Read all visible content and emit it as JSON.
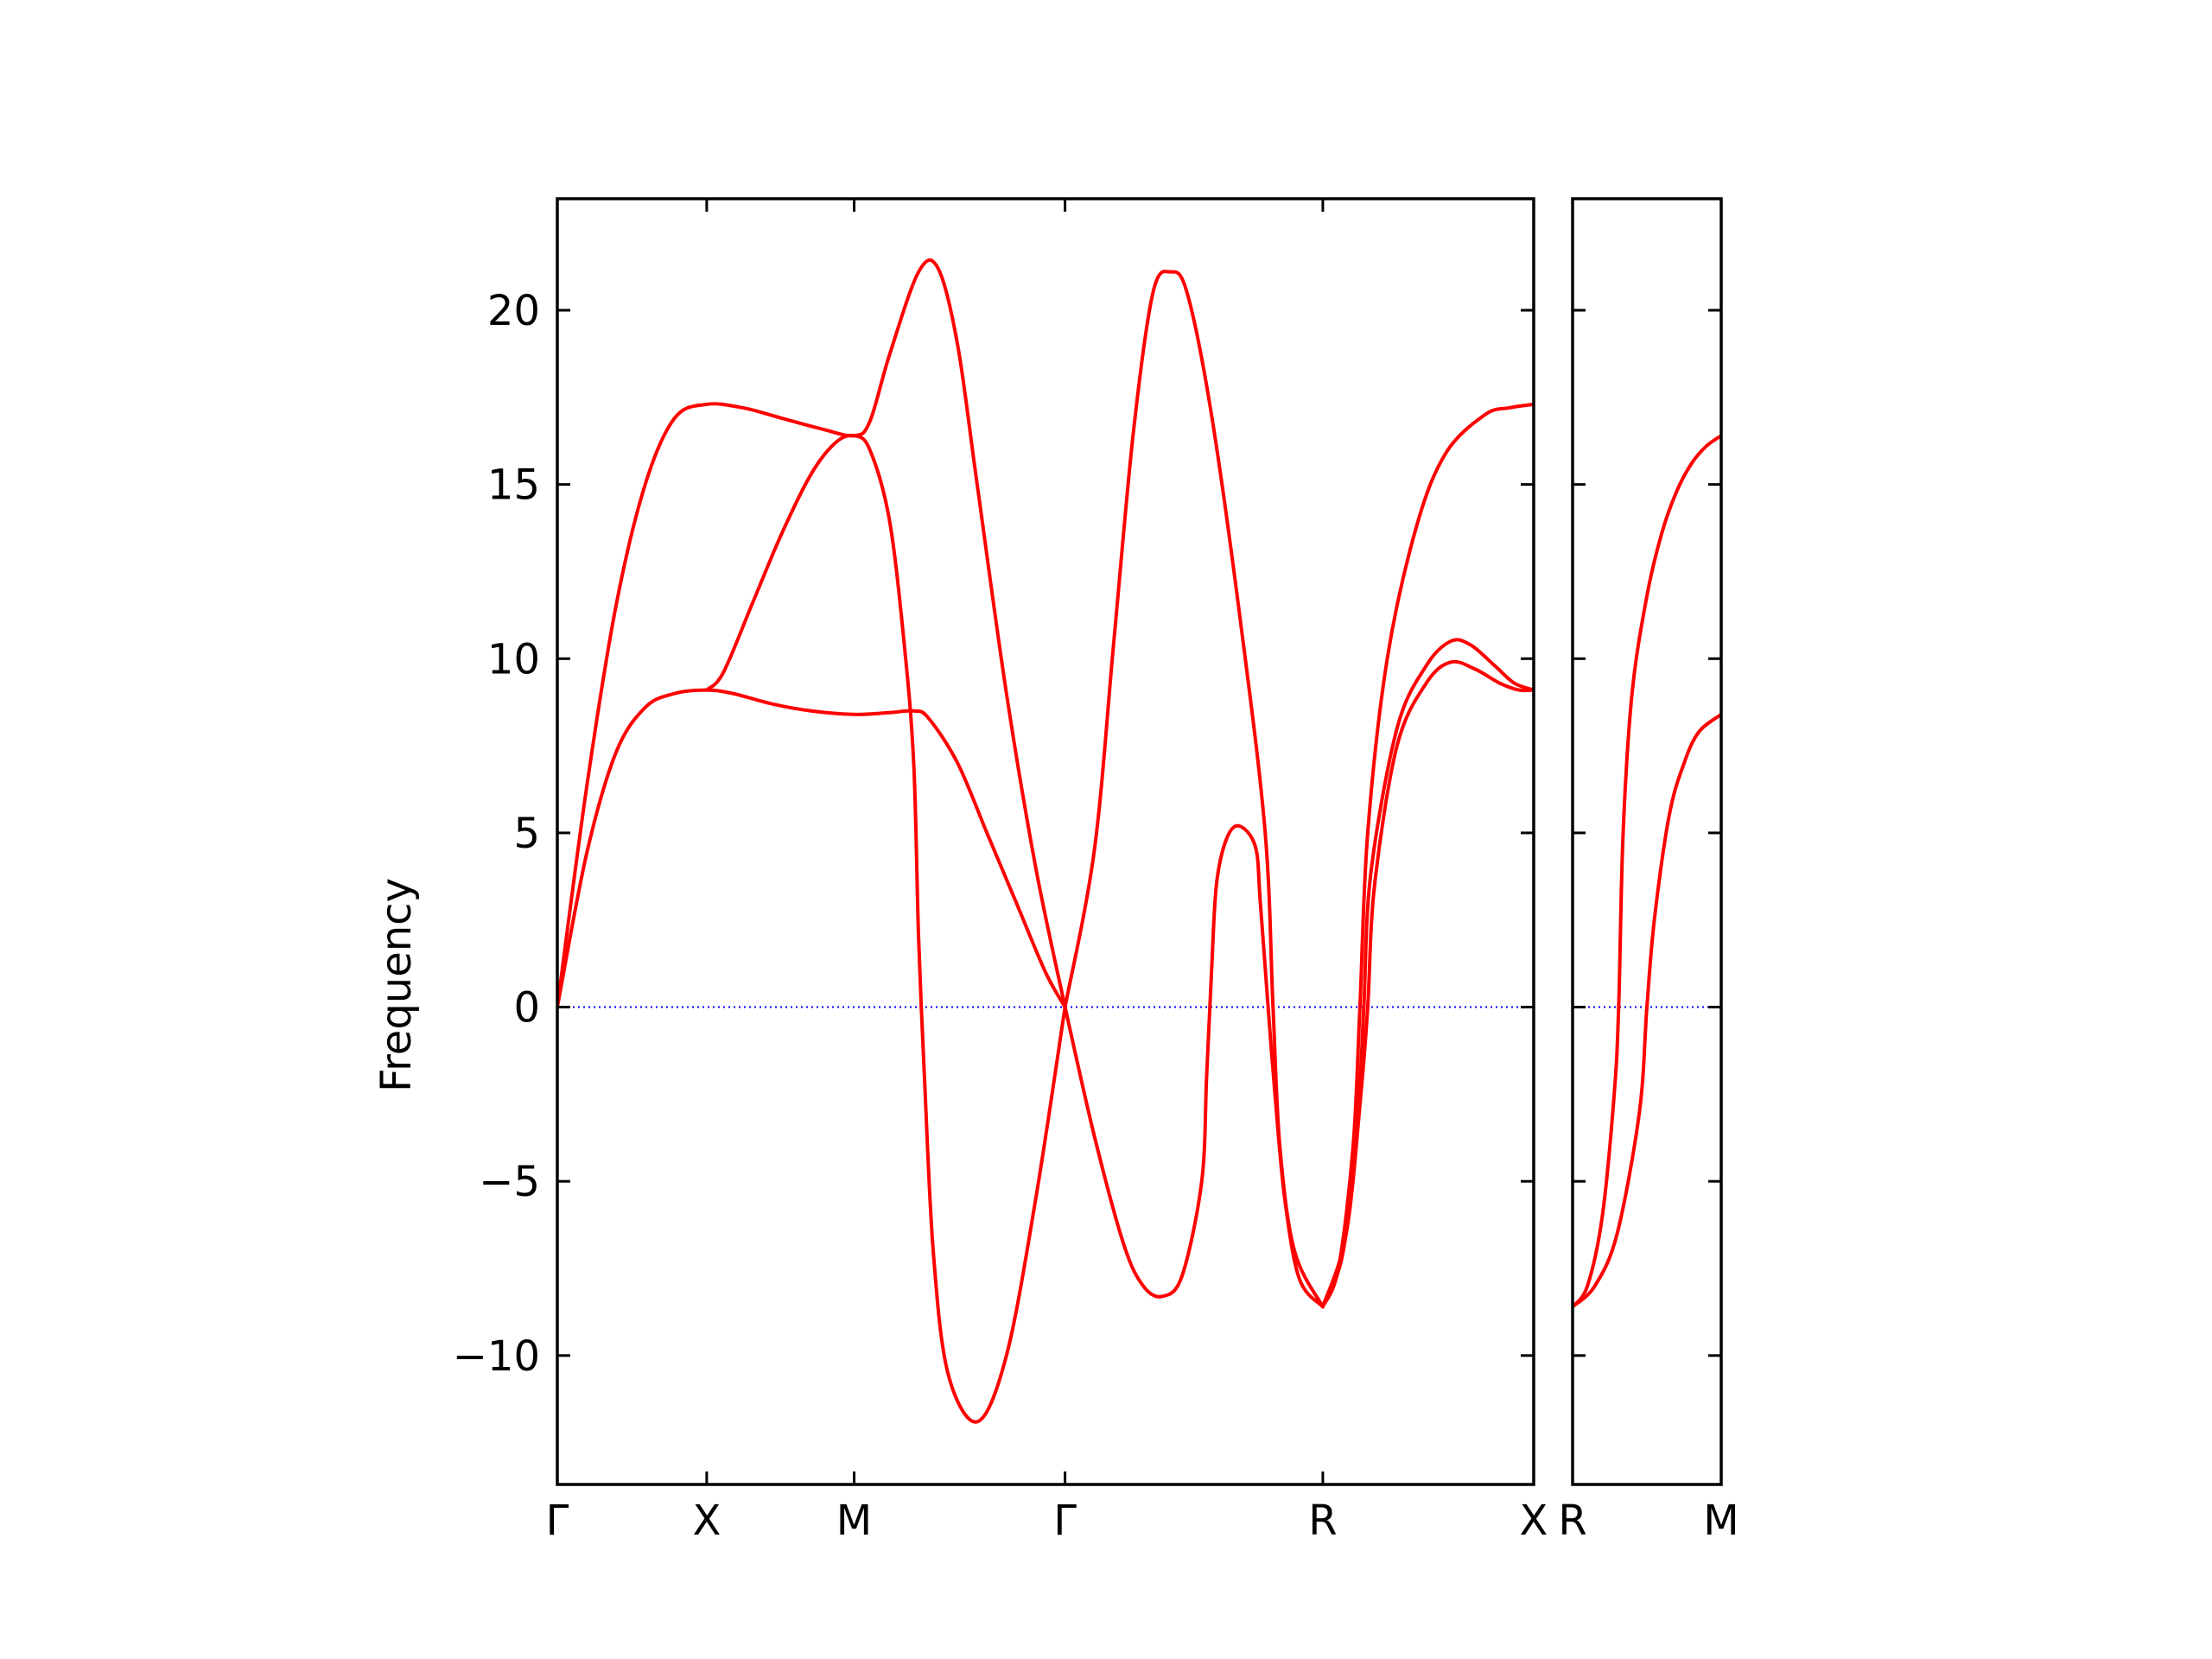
{
  "chart_data": {
    "type": "line",
    "ylabel": "Frequency",
    "xlabel": "",
    "ylim": [
      -13.7,
      23.2
    ],
    "yticks": [
      {
        "value": -10,
        "label": "−10"
      },
      {
        "value": -5,
        "label": "−5"
      },
      {
        "value": 0,
        "label": "0"
      },
      {
        "value": 5,
        "label": "5"
      },
      {
        "value": 10,
        "label": "10"
      },
      {
        "value": 15,
        "label": "15"
      },
      {
        "value": 20,
        "label": "20"
      }
    ],
    "line_color": "#ff0000",
    "zero_line_color": "#0000ff",
    "zero_line_style": "dotted",
    "grid": false,
    "legend": "none",
    "panels": [
      {
        "xlim": [
          0,
          1
        ],
        "high_symmetry_points": [
          {
            "label": "Γ",
            "x": 0.0
          },
          {
            "label": "X",
            "x": 0.153
          },
          {
            "label": "M",
            "x": 0.304
          },
          {
            "label": "Γ",
            "x": 0.52
          },
          {
            "label": "R",
            "x": 0.784
          },
          {
            "label": "X",
            "x": 1.0
          }
        ],
        "series": [
          {
            "values": [
              [
                0.0,
                0.0
              ],
              [
                0.03,
                4.4
              ],
              [
                0.06,
                7.3
              ],
              [
                0.09,
                8.6
              ],
              [
                0.12,
                9.0
              ],
              [
                0.153,
                9.1
              ],
              [
                0.18,
                9.0
              ],
              [
                0.22,
                8.7
              ],
              [
                0.26,
                8.5
              ],
              [
                0.304,
                8.4
              ],
              [
                0.34,
                8.45
              ],
              [
                0.365,
                8.5
              ],
              [
                0.38,
                8.3
              ],
              [
                0.41,
                7.0
              ],
              [
                0.44,
                5.0
              ],
              [
                0.47,
                3.0
              ],
              [
                0.5,
                1.0
              ],
              [
                0.52,
                0.0
              ]
            ]
          },
          {
            "values": [
              [
                0.0,
                0.0
              ],
              [
                0.03,
                6.3
              ],
              [
                0.06,
                11.5
              ],
              [
                0.09,
                15.0
              ],
              [
                0.12,
                16.9
              ],
              [
                0.153,
                17.3
              ],
              [
                0.19,
                17.2
              ],
              [
                0.23,
                16.9
              ],
              [
                0.27,
                16.6
              ],
              [
                0.304,
                16.4
              ],
              [
                0.32,
                16.8
              ],
              [
                0.34,
                18.7
              ],
              [
                0.37,
                21.1
              ],
              [
                0.39,
                21.2
              ],
              [
                0.41,
                19.0
              ],
              [
                0.43,
                15.0
              ],
              [
                0.46,
                9.0
              ],
              [
                0.49,
                4.0
              ],
              [
                0.52,
                0.0
              ]
            ]
          },
          {
            "values": [
              [
                0.153,
                9.1
              ],
              [
                0.17,
                9.6
              ],
              [
                0.2,
                11.6
              ],
              [
                0.23,
                13.6
              ],
              [
                0.26,
                15.3
              ],
              [
                0.285,
                16.2
              ],
              [
                0.304,
                16.4
              ],
              [
                0.32,
                16.0
              ],
              [
                0.34,
                14.0
              ],
              [
                0.355,
                10.5
              ],
              [
                0.365,
                7.0
              ],
              [
                0.37,
                2.0
              ],
              [
                0.376,
                -2.0
              ],
              [
                0.385,
                -7.0
              ],
              [
                0.4,
                -10.5
              ],
              [
                0.43,
                -11.9
              ],
              [
                0.46,
                -10.0
              ],
              [
                0.49,
                -5.5
              ],
              [
                0.52,
                0.0
              ]
            ]
          },
          {
            "values": [
              [
                0.52,
                0.0
              ],
              [
                0.55,
                -3.7
              ],
              [
                0.58,
                -6.8
              ],
              [
                0.6,
                -8.0
              ],
              [
                0.62,
                -8.3
              ],
              [
                0.64,
                -7.7
              ],
              [
                0.66,
                -5.0
              ],
              [
                0.665,
                -2.0
              ],
              [
                0.67,
                1.0
              ],
              [
                0.675,
                3.5
              ],
              [
                0.685,
                4.8
              ],
              [
                0.698,
                5.2
              ],
              [
                0.715,
                4.6
              ],
              [
                0.72,
                3.0
              ],
              [
                0.728,
                0.0
              ],
              [
                0.735,
                -2.5
              ],
              [
                0.745,
                -5.5
              ],
              [
                0.76,
                -7.8
              ],
              [
                0.784,
                -8.6
              ]
            ]
          },
          {
            "values": [
              [
                0.52,
                0.0
              ],
              [
                0.55,
                4.5
              ],
              [
                0.57,
                10.5
              ],
              [
                0.59,
                16.5
              ],
              [
                0.61,
                20.5
              ],
              [
                0.628,
                21.1
              ],
              [
                0.645,
                20.5
              ],
              [
                0.67,
                17.0
              ],
              [
                0.7,
                11.0
              ],
              [
                0.725,
                5.0
              ],
              [
                0.733,
                0.0
              ],
              [
                0.74,
                -4.0
              ],
              [
                0.755,
                -7.0
              ],
              [
                0.784,
                -8.6
              ]
            ]
          },
          {
            "values": [
              [
                0.784,
                -8.6
              ],
              [
                0.8,
                -7.5
              ],
              [
                0.815,
                -4.0
              ],
              [
                0.822,
                0.0
              ],
              [
                0.83,
                5.0
              ],
              [
                0.85,
                10.0
              ],
              [
                0.88,
                13.8
              ],
              [
                0.91,
                15.9
              ],
              [
                0.95,
                17.0
              ],
              [
                0.975,
                17.2
              ],
              [
                1.0,
                17.3
              ]
            ]
          },
          {
            "values": [
              [
                0.784,
                -8.6
              ],
              [
                0.805,
                -7.0
              ],
              [
                0.82,
                -3.0
              ],
              [
                0.826,
                0.0
              ],
              [
                0.833,
                3.8
              ],
              [
                0.86,
                8.0
              ],
              [
                0.89,
                9.8
              ],
              [
                0.915,
                10.5
              ],
              [
                0.935,
                10.4
              ],
              [
                0.96,
                9.8
              ],
              [
                0.98,
                9.3
              ],
              [
                1.0,
                9.1
              ]
            ]
          },
          {
            "values": [
              [
                0.784,
                -8.6
              ],
              [
                0.808,
                -6.5
              ],
              [
                0.823,
                -2.5
              ],
              [
                0.83,
                0.0
              ],
              [
                0.837,
                3.5
              ],
              [
                0.86,
                7.5
              ],
              [
                0.89,
                9.3
              ],
              [
                0.915,
                9.9
              ],
              [
                0.94,
                9.7
              ],
              [
                0.965,
                9.3
              ],
              [
                0.985,
                9.1
              ],
              [
                1.0,
                9.1
              ]
            ]
          }
        ]
      },
      {
        "xlim": [
          0,
          1
        ],
        "high_symmetry_points": [
          {
            "label": "R",
            "x": 0.0
          },
          {
            "label": "M",
            "x": 1.0
          }
        ],
        "series": [
          {
            "values": [
              [
                0.0,
                -8.6
              ],
              [
                0.1,
                -8.0
              ],
              [
                0.2,
                -6.0
              ],
              [
                0.28,
                -2.5
              ],
              [
                0.31,
                0.0
              ],
              [
                0.34,
                5.0
              ],
              [
                0.4,
                9.0
              ],
              [
                0.5,
                11.8
              ],
              [
                0.6,
                13.6
              ],
              [
                0.7,
                14.8
              ],
              [
                0.8,
                15.6
              ],
              [
                0.9,
                16.1
              ],
              [
                1.0,
                16.4
              ]
            ]
          },
          {
            "values": [
              [
                0.0,
                -8.6
              ],
              [
                0.15,
                -8.0
              ],
              [
                0.3,
                -6.5
              ],
              [
                0.45,
                -3.0
              ],
              [
                0.5,
                0.0
              ],
              [
                0.55,
                2.5
              ],
              [
                0.65,
                5.5
              ],
              [
                0.75,
                7.0
              ],
              [
                0.85,
                7.9
              ],
              [
                1.0,
                8.4
              ]
            ]
          }
        ]
      }
    ]
  }
}
